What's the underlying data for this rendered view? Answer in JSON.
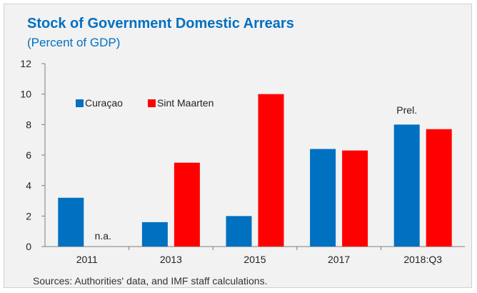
{
  "title": "Stock of Government Domestic Arrears",
  "subtitle": "(Percent of GDP)",
  "source": "Sources: Authorities' data, and IMF staff calculations.",
  "colors": {
    "accent": "#0070c0",
    "series1": "#0070c0",
    "series2": "#ff0000"
  },
  "annotations": {
    "na_label": "n.a.",
    "prelim_label": "Prel."
  },
  "chart_data": {
    "type": "bar",
    "categories": [
      "2011",
      "2013",
      "2015",
      "2017",
      "2018:Q3"
    ],
    "series": [
      {
        "name": "Curaçao",
        "values": [
          3.2,
          1.6,
          2.0,
          6.4,
          8.0
        ]
      },
      {
        "name": "Sint Maarten",
        "values": [
          null,
          5.5,
          10.0,
          6.3,
          7.7
        ]
      }
    ],
    "ylim": [
      0,
      12
    ],
    "yticks": [
      "0",
      "2",
      "4",
      "6",
      "8",
      "10",
      "12"
    ],
    "grid": false,
    "legend": "top-left"
  }
}
